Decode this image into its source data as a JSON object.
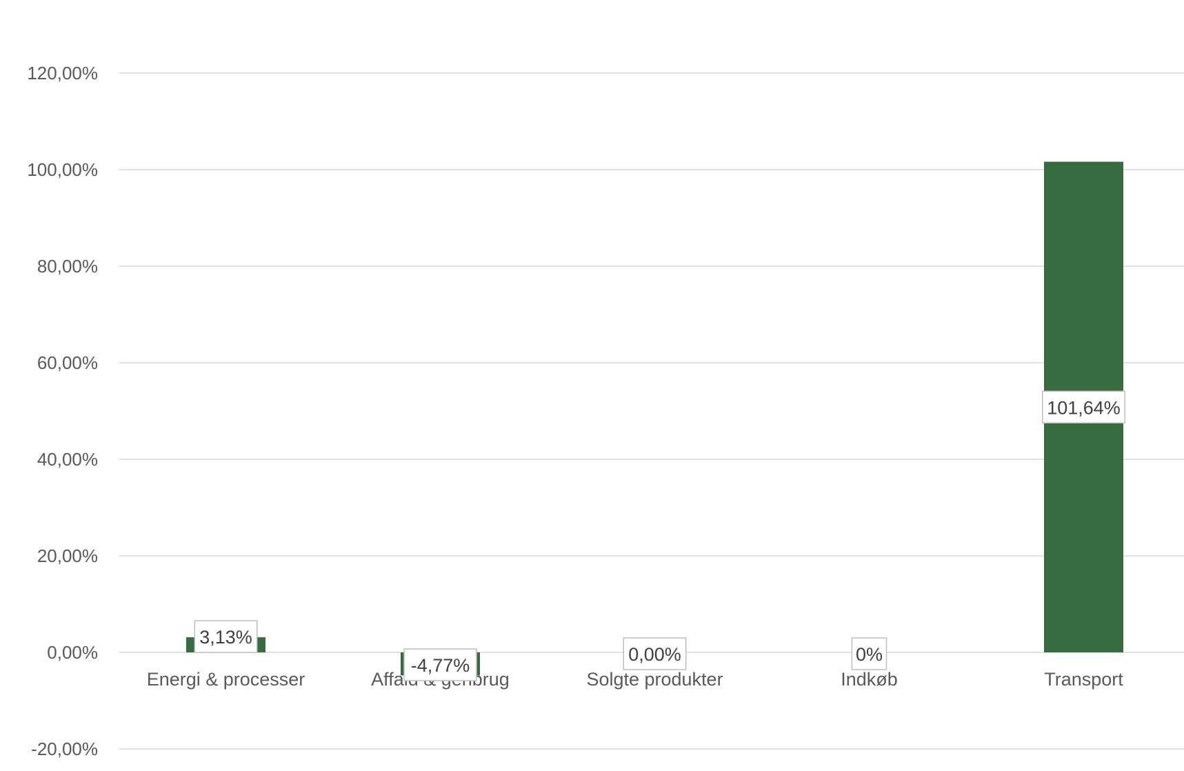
{
  "chart_data": {
    "type": "bar",
    "categories": [
      "Energi & processer",
      "Affald & genbrug",
      "Solgte produkter",
      "Indkøb",
      "Transport"
    ],
    "series": [
      {
        "values": [
          3.13,
          -4.77,
          0.0,
          0.0,
          101.64
        ],
        "data_labels": [
          "3,13%",
          "-4,77%",
          "0,00%",
          "0%",
          "101,64%"
        ],
        "color": "#386b3f"
      }
    ],
    "y_ticks": [
      -20,
      0,
      20,
      40,
      60,
      80,
      100,
      120
    ],
    "y_tick_labels": [
      "-20,00%",
      "0,00%",
      "20,00%",
      "40,00%",
      "60,00%",
      "80,00%",
      "100,00%",
      "120,00%"
    ],
    "ylim": [
      -20,
      120
    ],
    "grid": true,
    "legend": "none",
    "title": "",
    "xlabel": "",
    "ylabel": ""
  }
}
